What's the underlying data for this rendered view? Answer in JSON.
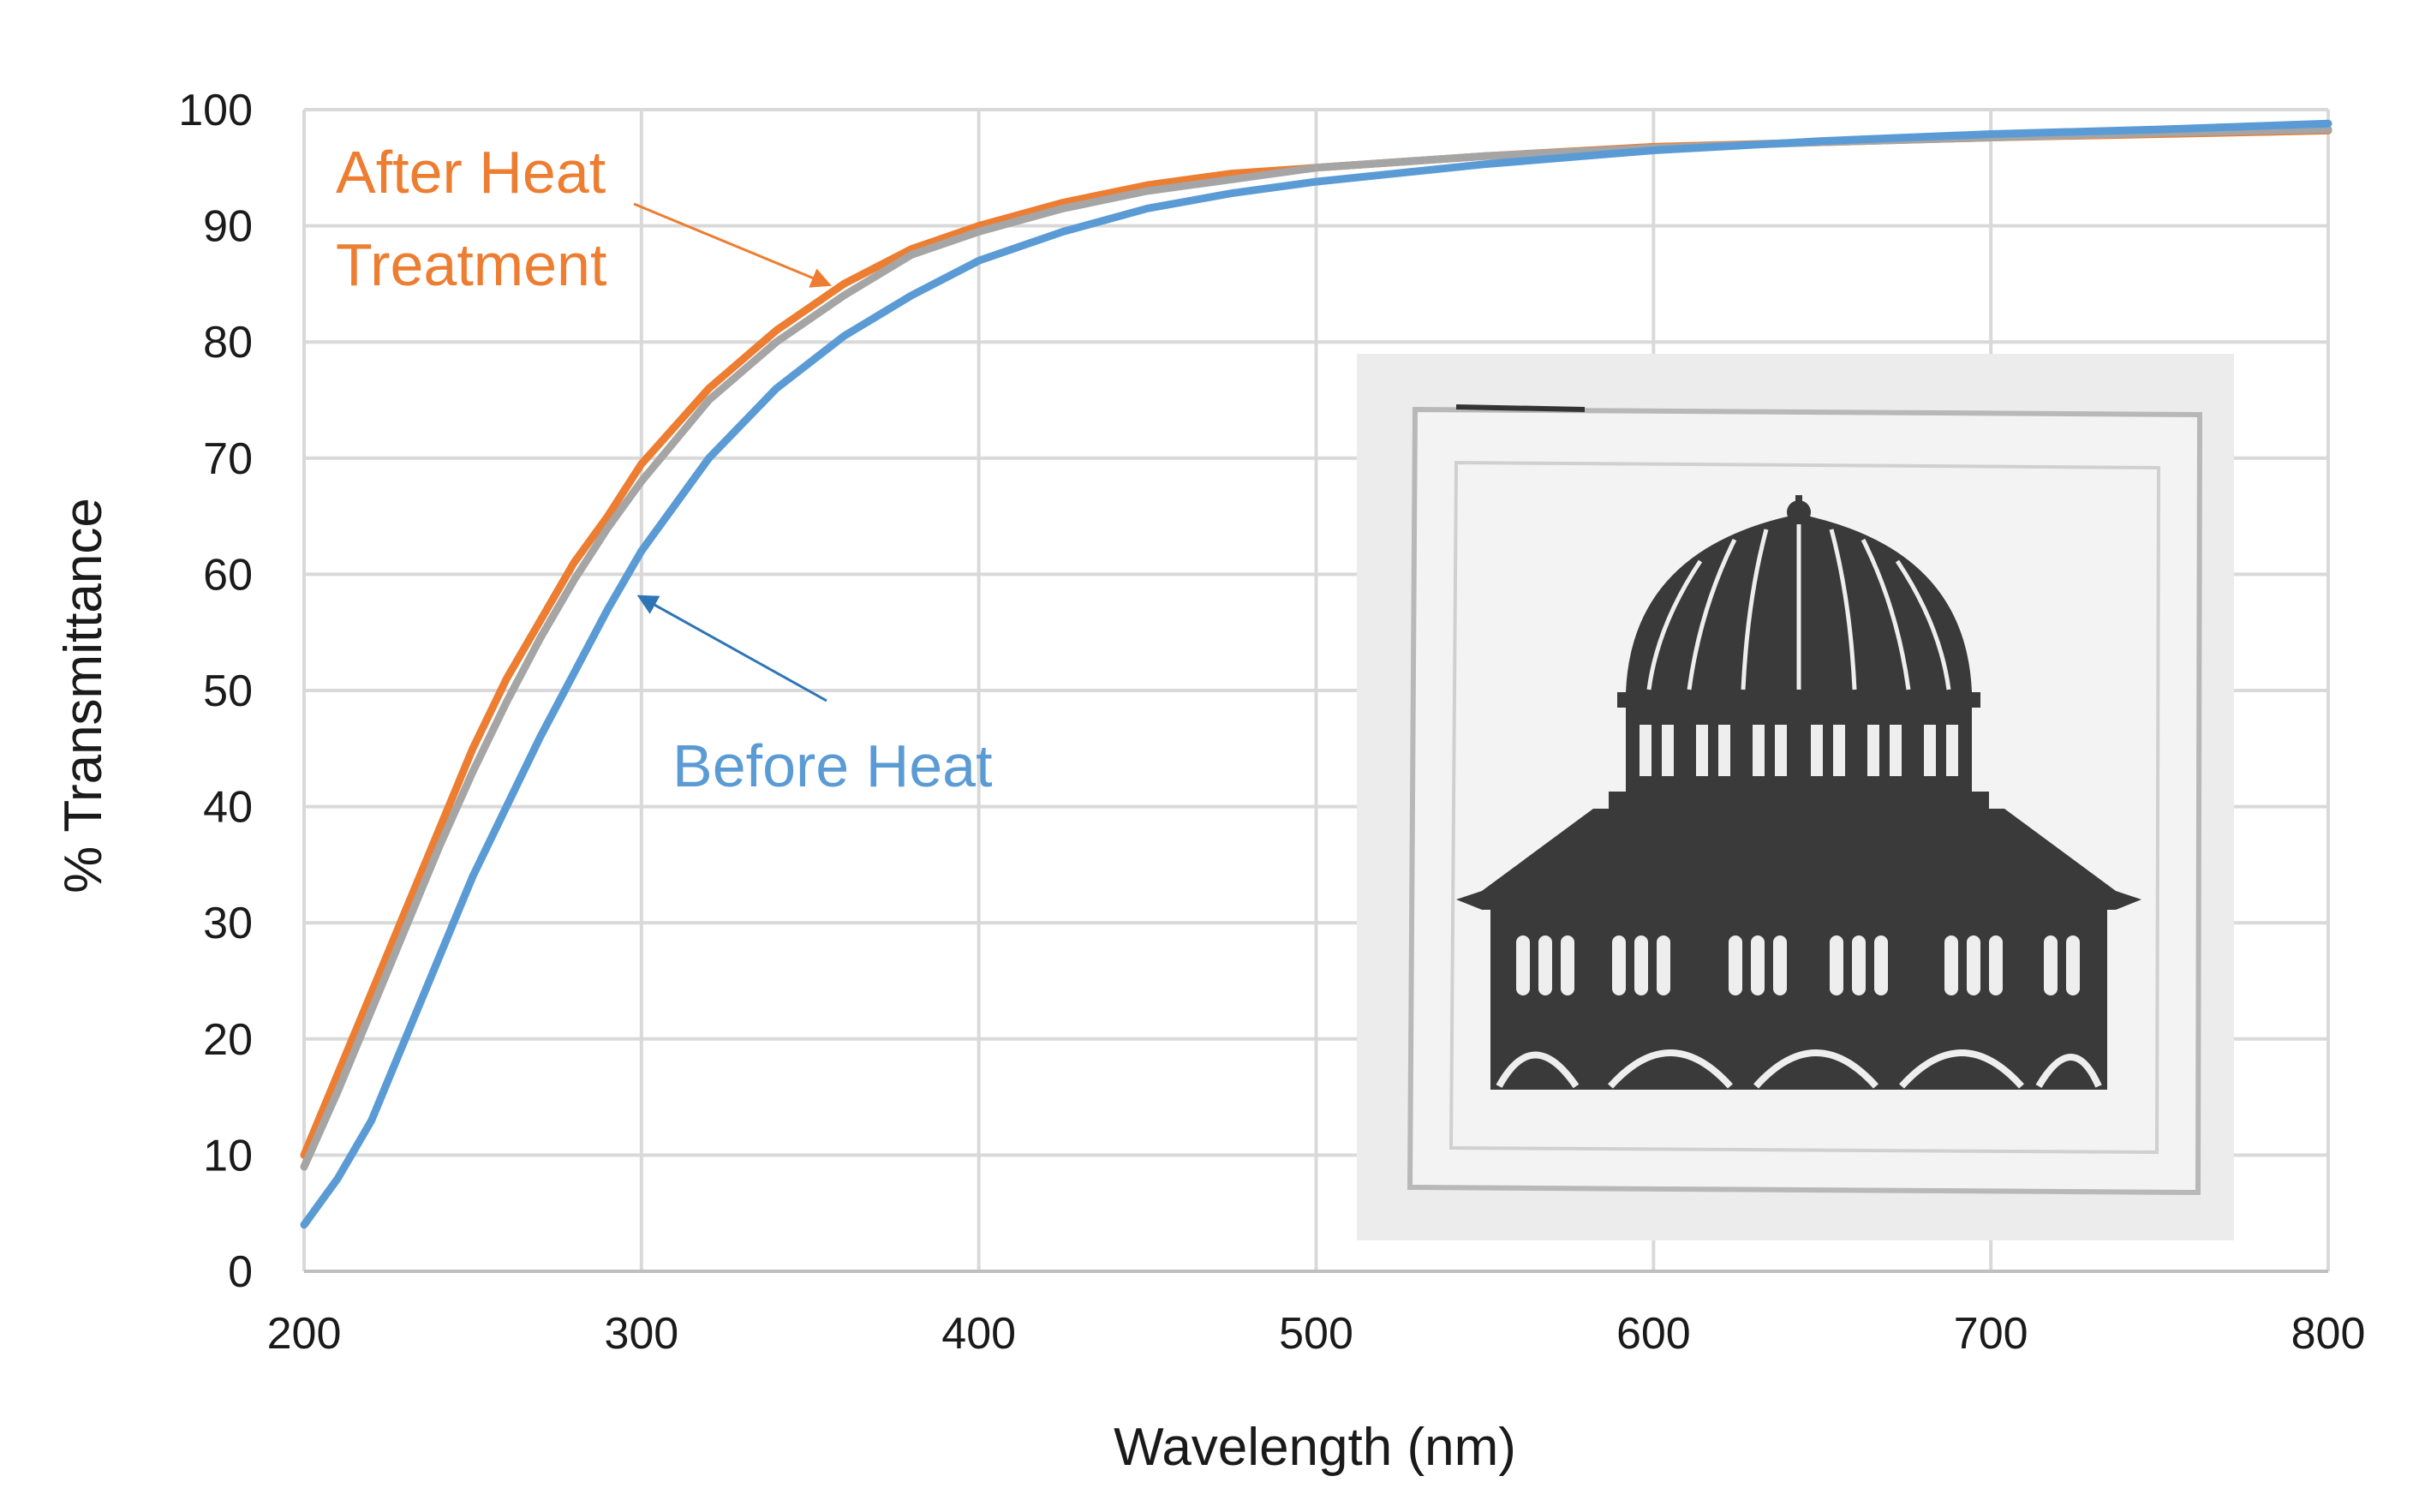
{
  "chart_data": {
    "type": "line",
    "xlabel": "Wavelength (nm)",
    "ylabel": "% Transmittance",
    "xlim": [
      200,
      800
    ],
    "ylim": [
      0,
      100
    ],
    "xticks": [
      200,
      300,
      400,
      500,
      600,
      700,
      800
    ],
    "yticks": [
      0,
      10,
      20,
      30,
      40,
      50,
      60,
      70,
      80,
      90,
      100
    ],
    "grid": true,
    "x": [
      200,
      210,
      220,
      230,
      240,
      250,
      260,
      270,
      280,
      290,
      300,
      320,
      340,
      360,
      380,
      400,
      425,
      450,
      475,
      500,
      550,
      600,
      650,
      700,
      750,
      800
    ],
    "series": [
      {
        "color": "#ED7D31",
        "values": [
          10,
          17,
          24,
          31,
          38,
          45,
          51,
          56,
          61,
          65,
          69.5,
          76,
          81,
          85,
          88,
          90,
          92,
          93.5,
          94.5,
          95,
          96,
          96.8,
          97.2,
          97.6,
          97.9,
          98.2
        ]
      },
      {
        "color": "#A5A5A5",
        "values": [
          9,
          15.5,
          22.5,
          29.5,
          36.5,
          43,
          49,
          54.5,
          59.5,
          64,
          68,
          75,
          80,
          84,
          87.5,
          89.5,
          91.5,
          93,
          94,
          95,
          96,
          96.7,
          97.2,
          97.6,
          98,
          98.3
        ]
      },
      {
        "color": "#5B9BD5",
        "values": [
          4,
          8,
          13,
          20,
          27,
          34,
          40,
          46,
          51.5,
          57,
          62,
          70,
          76,
          80.5,
          84,
          87,
          89.5,
          91.5,
          92.8,
          93.8,
          95.3,
          96.5,
          97.3,
          97.9,
          98.3,
          98.8
        ]
      }
    ],
    "annotations": [
      {
        "lines": [
          "After Heat",
          "Treatment"
        ],
        "color": "#ED7D31",
        "arrow_to": [
          355,
          85
        ]
      },
      {
        "lines": [
          "Before Heat"
        ],
        "color": "#5B9BD5",
        "arrow_to": [
          300,
          58
        ]
      }
    ],
    "inset_image": "photo-of-transparent-film-over-domed-building-illustration"
  }
}
